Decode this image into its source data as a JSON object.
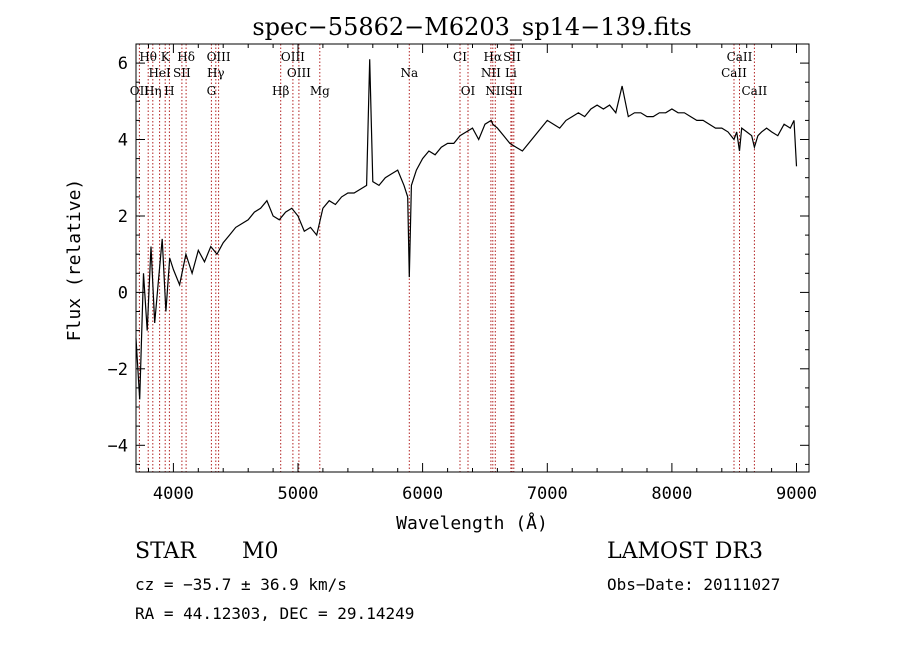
{
  "chart_data": {
    "type": "line",
    "title": "spec−55862−M6203_sp14−139.fits",
    "xlabel": "Wavelength (Å)",
    "ylabel": "Flux (relative)",
    "xlim": [
      3700,
      9100
    ],
    "ylim": [
      -4.7,
      6.5
    ],
    "xticks": [
      4000,
      5000,
      6000,
      7000,
      8000,
      9000
    ],
    "xtick_labels": [
      "4000",
      "5000",
      "6000",
      "7000",
      "8000",
      "9000"
    ],
    "yticks": [
      -4,
      -2,
      0,
      2,
      4,
      6
    ],
    "ytick_labels": [
      "−4",
      "−2",
      "0",
      "2",
      "4",
      "6"
    ],
    "spectrum_x": [
      3700,
      3730,
      3760,
      3790,
      3820,
      3850,
      3880,
      3910,
      3940,
      3970,
      4000,
      4050,
      4100,
      4150,
      4200,
      4250,
      4300,
      4350,
      4400,
      4450,
      4500,
      4550,
      4600,
      4650,
      4700,
      4750,
      4800,
      4850,
      4900,
      4950,
      5000,
      5050,
      5100,
      5150,
      5200,
      5250,
      5300,
      5350,
      5400,
      5450,
      5500,
      5550,
      5575,
      5600,
      5650,
      5700,
      5750,
      5800,
      5850,
      5880,
      5893,
      5910,
      5950,
      6000,
      6050,
      6100,
      6150,
      6200,
      6250,
      6300,
      6350,
      6400,
      6450,
      6500,
      6550,
      6563,
      6600,
      6650,
      6700,
      6750,
      6800,
      6850,
      6900,
      6950,
      7000,
      7050,
      7100,
      7150,
      7200,
      7250,
      7300,
      7350,
      7400,
      7450,
      7500,
      7550,
      7600,
      7650,
      7700,
      7750,
      7800,
      7850,
      7900,
      7950,
      8000,
      8050,
      8100,
      8150,
      8200,
      8250,
      8300,
      8350,
      8400,
      8450,
      8498,
      8520,
      8542,
      8560,
      8600,
      8640,
      8662,
      8690,
      8720,
      8760,
      8800,
      8850,
      8900,
      8950,
      8980,
      9000
    ],
    "spectrum_y": [
      -1.2,
      -2.8,
      0.5,
      -1.0,
      1.2,
      -0.8,
      0.3,
      1.4,
      -0.5,
      0.9,
      0.6,
      0.2,
      1.0,
      0.5,
      1.1,
      0.8,
      1.2,
      1.0,
      1.3,
      1.5,
      1.7,
      1.8,
      1.9,
      2.1,
      2.2,
      2.4,
      2.0,
      1.9,
      2.1,
      2.2,
      2.0,
      1.6,
      1.7,
      1.5,
      2.2,
      2.4,
      2.3,
      2.5,
      2.6,
      2.6,
      2.7,
      2.8,
      6.1,
      2.9,
      2.8,
      3.0,
      3.1,
      3.2,
      2.8,
      2.5,
      0.4,
      2.8,
      3.2,
      3.5,
      3.7,
      3.6,
      3.8,
      3.9,
      3.9,
      4.1,
      4.2,
      4.3,
      4.0,
      4.4,
      4.5,
      4.4,
      4.3,
      4.1,
      3.9,
      3.8,
      3.7,
      3.9,
      4.1,
      4.3,
      4.5,
      4.4,
      4.3,
      4.5,
      4.6,
      4.7,
      4.6,
      4.8,
      4.9,
      4.8,
      4.9,
      4.7,
      5.4,
      4.6,
      4.7,
      4.7,
      4.6,
      4.6,
      4.7,
      4.7,
      4.8,
      4.7,
      4.7,
      4.6,
      4.5,
      4.5,
      4.4,
      4.3,
      4.3,
      4.2,
      4.0,
      4.2,
      3.7,
      4.3,
      4.2,
      4.1,
      3.8,
      4.1,
      4.2,
      4.3,
      4.2,
      4.1,
      4.4,
      4.3,
      4.5,
      3.3
    ],
    "lines": [
      {
        "label": "Hθ",
        "wavelength": 3798,
        "row": 0
      },
      {
        "label": "K",
        "wavelength": 3934,
        "row": 0
      },
      {
        "label": "Hδ",
        "wavelength": 4102,
        "row": 0
      },
      {
        "label": "OIII",
        "wavelength": 4363,
        "row": 0
      },
      {
        "label": "OIII",
        "wavelength": 4959,
        "row": 0
      },
      {
        "label": "CI",
        "wavelength": 6300,
        "row": 0
      },
      {
        "label": "Hα",
        "wavelength": 6563,
        "row": 0
      },
      {
        "label": "SII",
        "wavelength": 6717,
        "row": 0
      },
      {
        "label": "CaII",
        "wavelength": 8542,
        "row": 0
      },
      {
        "label": "HeI",
        "wavelength": 3889,
        "row": 1
      },
      {
        "label": "SII",
        "wavelength": 4068,
        "row": 1
      },
      {
        "label": "Hγ",
        "wavelength": 4340,
        "row": 1
      },
      {
        "label": "OIII",
        "wavelength": 5007,
        "row": 1
      },
      {
        "label": "Na",
        "wavelength": 5893,
        "row": 1
      },
      {
        "label": "NII",
        "wavelength": 6548,
        "row": 1
      },
      {
        "label": "Li",
        "wavelength": 6708,
        "row": 1
      },
      {
        "label": "CaII",
        "wavelength": 8498,
        "row": 1
      },
      {
        "label": "OII",
        "wavelength": 3727,
        "row": 2
      },
      {
        "label": "Hη",
        "wavelength": 3835,
        "row": 2
      },
      {
        "label": "H",
        "wavelength": 3968,
        "row": 2
      },
      {
        "label": "G",
        "wavelength": 4305,
        "row": 2
      },
      {
        "label": "Hβ",
        "wavelength": 4861,
        "row": 2
      },
      {
        "label": "Mg",
        "wavelength": 5175,
        "row": 2
      },
      {
        "label": "OI",
        "wavelength": 6364,
        "row": 2
      },
      {
        "label": "NII",
        "wavelength": 6583,
        "row": 2
      },
      {
        "label": "SII",
        "wavelength": 6731,
        "row": 2
      },
      {
        "label": "CaII",
        "wavelength": 8662,
        "row": 2
      }
    ],
    "line_color": "#b22222",
    "spectrum_color": "#000000"
  },
  "info": {
    "object_class": "STAR",
    "subclass": "M0",
    "survey": "LAMOST DR3",
    "cz": "cz = −35.7 ± 36.9 km/s",
    "obs_date": "Obs−Date: 20111027",
    "coords": "RA =  44.12303, DEC =  29.14249"
  }
}
